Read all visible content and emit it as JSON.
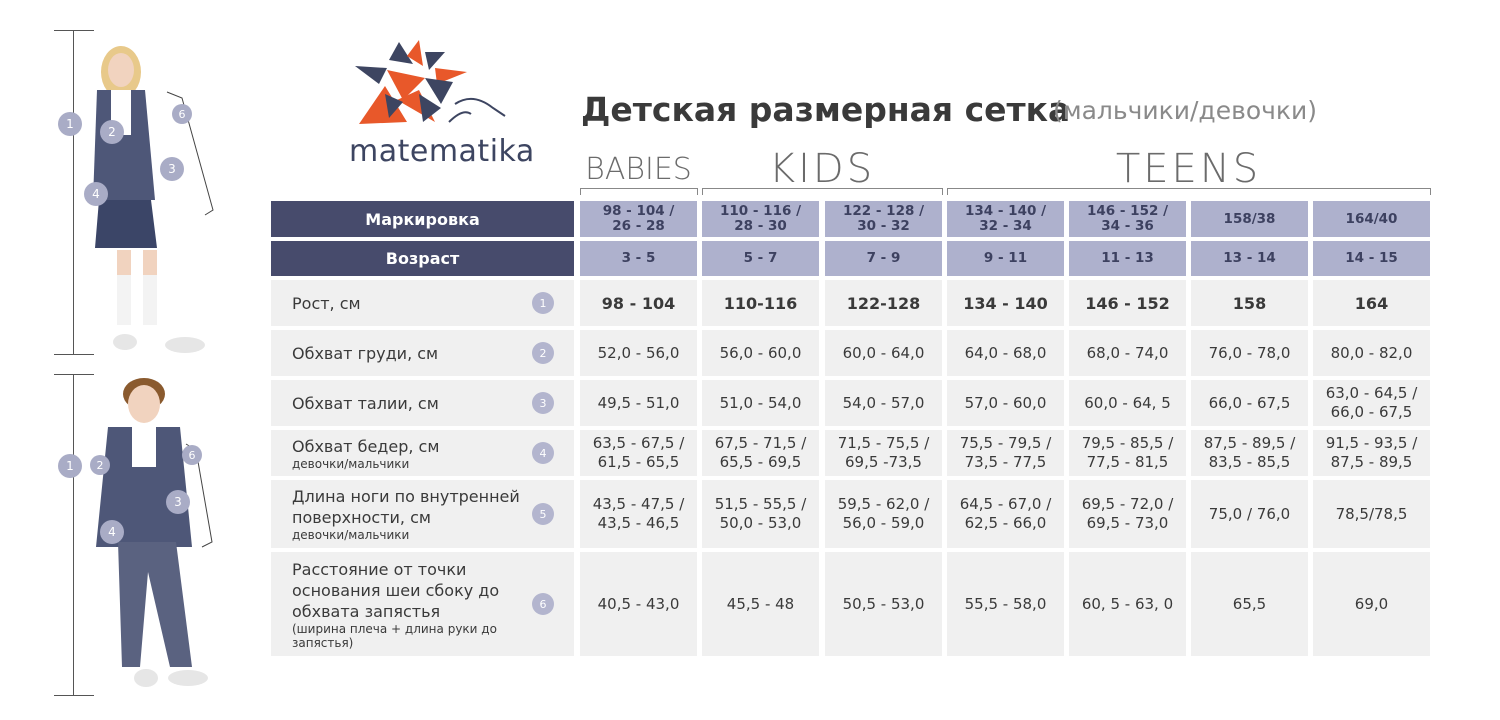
{
  "brand": {
    "name": "matematika"
  },
  "title": "Детская размерная сетка",
  "subtitle": "(мальчики/девочки)",
  "groups": [
    "BABIES",
    "KIDS",
    "TEENS"
  ],
  "figure_badges": {
    "girl": [
      "1",
      "2",
      "3",
      "4",
      "6"
    ],
    "boy": [
      "1",
      "2",
      "3",
      "4",
      "6"
    ]
  },
  "header": {
    "marking_label": "Маркировка",
    "age_label": "Возраст",
    "markings": [
      "98 - 104 /\n26 - 28",
      "110 - 116 /\n28 - 30",
      "122 - 128 /\n30 - 32",
      "134 - 140 /\n32 - 34",
      "146 - 152 /\n34 - 36",
      "158/38",
      "164/40"
    ],
    "ages": [
      "3 - 5",
      "5 - 7",
      "7 - 9",
      "9 - 11",
      "11 - 13",
      "13 - 14",
      "14 - 15"
    ]
  },
  "rows": [
    {
      "label": "Рост, см",
      "sub": "",
      "num": "1",
      "values": [
        "98 - 104",
        "110-116",
        "122-128",
        "134 - 140",
        "146 - 152",
        "158",
        "164"
      ]
    },
    {
      "label": "Обхват груди, см",
      "sub": "",
      "num": "2",
      "values": [
        "52,0 - 56,0",
        "56,0 - 60,0",
        "60,0  - 64,0",
        "64,0 - 68,0",
        "68,0 - 74,0",
        "76,0 - 78,0",
        "80,0 - 82,0"
      ]
    },
    {
      "label": "Обхват талии, см",
      "sub": "",
      "num": "3",
      "values": [
        "49,5 - 51,0",
        "51,0 - 54,0",
        "54,0 - 57,0",
        "57,0 - 60,0",
        "60,0 - 64, 5",
        "66,0 - 67,5",
        "63,0 - 64,5 /\n66,0 - 67,5"
      ]
    },
    {
      "label": "Обхват бедер, см",
      "sub": "девочки/мальчики",
      "num": "4",
      "values": [
        "63,5 - 67,5 /\n61,5 - 65,5",
        "67,5 - 71,5 /\n65,5 - 69,5",
        "71,5 - 75,5 /\n69,5 -73,5",
        "75,5 - 79,5 /\n73,5 - 77,5",
        "79,5 - 85,5 /\n77,5 - 81,5",
        "87,5 - 89,5 /\n83,5 - 85,5",
        "91,5 - 93,5 /\n87,5 - 89,5"
      ]
    },
    {
      "label": "Длина ноги по внутренней поверхности, см",
      "sub": "девочки/мальчики",
      "num": "5",
      "values": [
        "43,5 - 47,5 /\n43,5 - 46,5",
        "51,5 - 55,5 /\n50,0 - 53,0",
        "59,5 - 62,0 /\n56,0 - 59,0",
        "64,5 - 67,0 /\n62,5 - 66,0",
        "69,5 - 72,0 /\n69,5 - 73,0",
        "75,0 / 76,0",
        "78,5/78,5"
      ]
    },
    {
      "label": "Расстояние от точки основания шеи сбоку до обхвата запястья",
      "sub": "(ширина плеча + длина руки до запястья)",
      "num": "6",
      "values": [
        "40,5 - 43,0",
        "45,5 - 48",
        "50,5 - 53,0",
        "55,5 - 58,0",
        "60, 5 - 63, 0",
        "65,5",
        "69,0"
      ]
    }
  ],
  "colors": {
    "header_dark": "#474b6c",
    "header_light": "#aeb1cd",
    "cell_bg": "#f0f0f0",
    "logo_orange": "#e8582a",
    "logo_dark": "#3d4561"
  }
}
